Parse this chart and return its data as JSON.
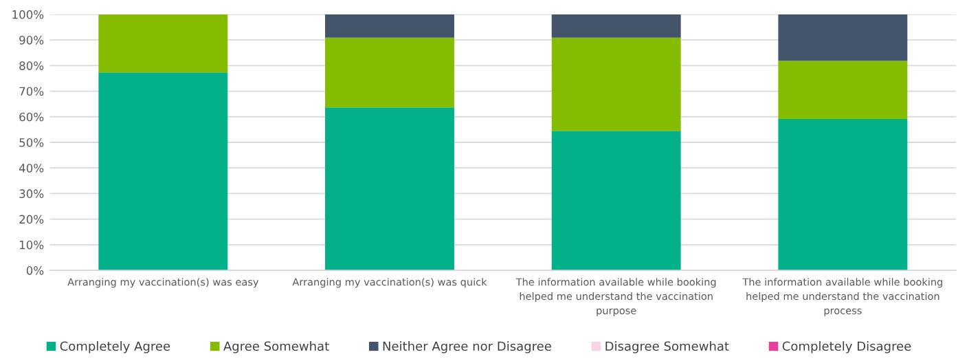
{
  "chart_data": {
    "type": "bar",
    "stacked": true,
    "categories": [
      "Arranging my vaccination(s) was easy",
      "Arranging my vaccination(s) was quick",
      "The information available while booking helped me understand the vaccination purpose",
      "The information available while booking helped me understand the vaccination process"
    ],
    "series": [
      {
        "name": "Completely Agree",
        "color": "#02b08a",
        "values": [
          77.3,
          63.6,
          54.5,
          59.1
        ]
      },
      {
        "name": "Agree Somewhat",
        "color": "#86bc00",
        "values": [
          22.7,
          27.3,
          36.4,
          22.7
        ]
      },
      {
        "name": "Neither Agree nor Disagree",
        "color": "#44546a",
        "values": [
          0,
          9.1,
          9.1,
          18.2
        ]
      },
      {
        "name": "Disagree Somewhat",
        "color": "#fad3e6",
        "values": [
          0,
          0,
          0,
          0
        ]
      },
      {
        "name": "Completely Disagree",
        "color": "#e8409a",
        "values": [
          0,
          0,
          0,
          0
        ]
      }
    ],
    "ylim": [
      0,
      100
    ],
    "yticks": [
      {
        "value": 0,
        "label": "0%"
      },
      {
        "value": 10,
        "label": "10%"
      },
      {
        "value": 20,
        "label": "20%"
      },
      {
        "value": 30,
        "label": "30%"
      },
      {
        "value": 40,
        "label": "40%"
      },
      {
        "value": 50,
        "label": "50%"
      },
      {
        "value": 60,
        "label": "60%"
      },
      {
        "value": 70,
        "label": "70%"
      },
      {
        "value": 80,
        "label": "80%"
      },
      {
        "value": 90,
        "label": "90%"
      },
      {
        "value": 100,
        "label": "100%"
      }
    ],
    "grid": "y",
    "legend": "bottom"
  }
}
